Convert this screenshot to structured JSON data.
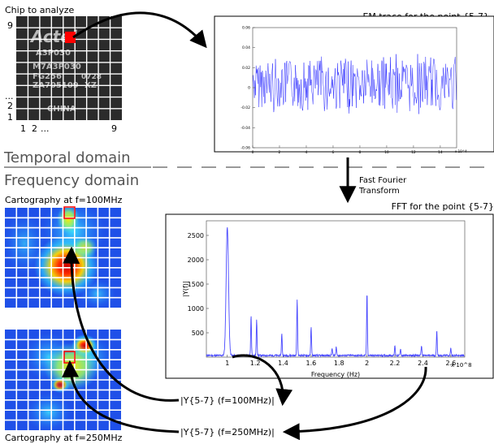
{
  "labels": {
    "chip_title": "Chip to analyze",
    "chip_y_top": "9",
    "chip_y_dots": "...",
    "chip_y_2": "2",
    "chip_y_1": "1",
    "chip_x_1": "1",
    "chip_x_2": "2",
    "chip_x_dots": "...",
    "chip_x_9": "9",
    "em_title": "EM trace for the point {5-7}",
    "temporal": "Temporal domain",
    "frequency": "Frequency domain",
    "fft_line1": "Fast Fourier",
    "fft_line2": "Transform",
    "fft_title": "FFT for the point {5-7}",
    "carto100": "Cartography at f=100MHz",
    "carto250": "Cartography at f=250MHz",
    "y100": "|Y{5-7} (f=100MHz)|",
    "y250": "|Y{5-7} (f=250MHz)|"
  },
  "chip_markings": [
    "Actel",
    "A3P030",
    "M7A3P030",
    "FG256",
    "0728",
    "ZA705109",
    "XZ",
    "CHINA"
  ],
  "em_plot": {
    "x_ticks": [
      "0",
      "2",
      "4",
      "6",
      "8",
      "10",
      "12",
      "14"
    ],
    "x_exp": "x 10^4",
    "y_ticks": [
      "0.06",
      "0.04",
      "0.02",
      "0",
      "-0.02",
      "-0.04",
      "-0.06"
    ]
  },
  "chart_data": {
    "type": "line",
    "xlabel": "Frequency (Hz)",
    "ylabel": "|Y(f)|",
    "x_exponent": "x 10^8",
    "xlim": [
      0.85,
      2.7
    ],
    "ylim": [
      0,
      2800
    ],
    "x_ticks": [
      "1",
      "1.2",
      "1.4",
      "1.6",
      "1.8",
      "2",
      "2.2",
      "2.4",
      "2.6"
    ],
    "y_ticks": [
      "500",
      "1000",
      "1500",
      "2000",
      "2500"
    ],
    "peaks": [
      {
        "x": 1.0,
        "y": 2650
      },
      {
        "x": 1.17,
        "y": 820
      },
      {
        "x": 1.21,
        "y": 750
      },
      {
        "x": 1.39,
        "y": 450
      },
      {
        "x": 1.5,
        "y": 1170
      },
      {
        "x": 1.6,
        "y": 600
      },
      {
        "x": 1.78,
        "y": 180
      },
      {
        "x": 1.75,
        "y": 160
      },
      {
        "x": 2.0,
        "y": 1300
      },
      {
        "x": 2.2,
        "y": 210
      },
      {
        "x": 2.24,
        "y": 130
      },
      {
        "x": 2.39,
        "y": 200
      },
      {
        "x": 2.5,
        "y": 520
      },
      {
        "x": 2.6,
        "y": 150
      }
    ],
    "baseline": 40
  },
  "colors": {
    "highlight": "#ff0000",
    "trace": "#2a2aff",
    "fft_line": "#4a4aff",
    "dash": "#999999"
  }
}
